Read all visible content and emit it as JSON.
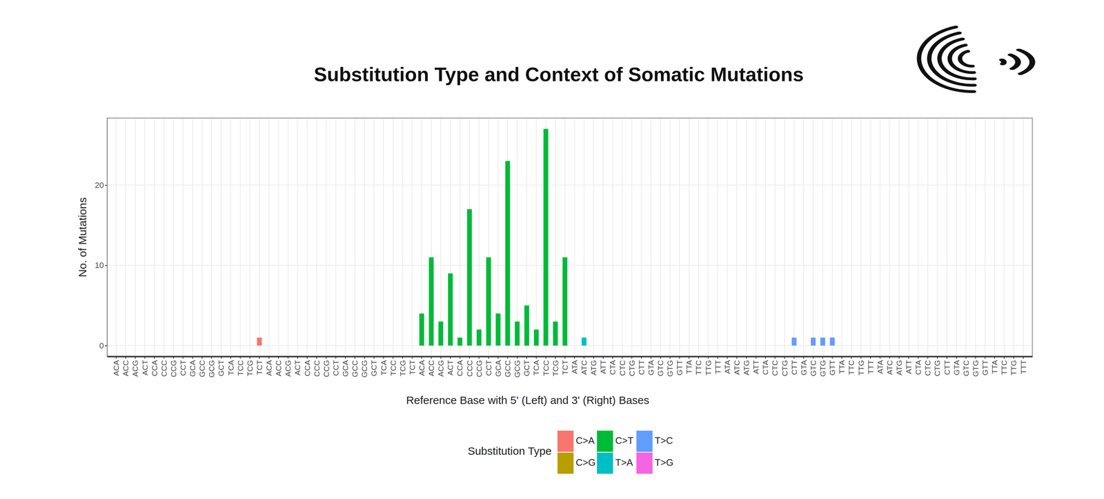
{
  "chart_data": {
    "type": "bar",
    "title": "Substitution Type and Context of Somatic Mutations",
    "x_label": "Reference Base with 5' (Left) and 3' (Right) Bases",
    "y_label": "No. of Mutations",
    "legend_title": "Substitution Type",
    "legend": "bottom",
    "grid": true,
    "categories": [
      "ACA",
      "ACC",
      "ACG",
      "ACT",
      "CCA",
      "CCC",
      "CCG",
      "CCT",
      "GCA",
      "GCC",
      "GCG",
      "GCT",
      "TCA",
      "TCC",
      "TCG",
      "TCT",
      "ACA",
      "ACC",
      "ACG",
      "ACT",
      "CCA",
      "CCC",
      "CCG",
      "CCT",
      "GCA",
      "GCC",
      "GCG",
      "GCT",
      "TCA",
      "TCC",
      "TCG",
      "TCT",
      "ACA",
      "ACC",
      "ACG",
      "ACT",
      "CCA",
      "CCC",
      "CCG",
      "CCT",
      "GCA",
      "GCC",
      "GCG",
      "GCT",
      "TCA",
      "TCC",
      "TCG",
      "TCT",
      "ATA",
      "ATC",
      "ATG",
      "ATT",
      "CTA",
      "CTC",
      "CTG",
      "CTT",
      "GTA",
      "GTC",
      "GTG",
      "GTT",
      "TTA",
      "TTC",
      "TTG",
      "TTT",
      "ATA",
      "ATC",
      "ATG",
      "ATT",
      "CTA",
      "CTC",
      "CTG",
      "CTT",
      "GTA",
      "GTC",
      "GTG",
      "GTT",
      "TTA",
      "TTC",
      "TTG",
      "TTT",
      "ATA",
      "ATC",
      "ATG",
      "ATT",
      "CTA",
      "CTC",
      "CTG",
      "CTT",
      "GTA",
      "GTC",
      "GTG",
      "GTT",
      "TTA",
      "TTC",
      "TTG",
      "TTT"
    ],
    "series": [
      {
        "name": "C>A",
        "color": "#F8766D",
        "values": [
          0,
          0,
          0,
          0,
          0,
          0,
          0,
          0,
          0,
          0,
          0,
          0,
          0,
          0,
          0,
          1,
          null,
          null,
          null,
          null,
          null,
          null,
          null,
          null,
          null,
          null,
          null,
          null,
          null,
          null,
          null,
          null,
          null,
          null,
          null,
          null,
          null,
          null,
          null,
          null,
          null,
          null,
          null,
          null,
          null,
          null,
          null,
          null,
          null,
          null,
          null,
          null,
          null,
          null,
          null,
          null,
          null,
          null,
          null,
          null,
          null,
          null,
          null,
          null,
          null,
          null,
          null,
          null,
          null,
          null,
          null,
          null,
          null,
          null,
          null,
          null,
          null,
          null,
          null,
          null,
          null,
          null,
          null,
          null,
          null,
          null,
          null,
          null,
          null,
          null,
          null,
          null,
          null,
          null,
          null,
          null
        ]
      },
      {
        "name": "C>G",
        "color": "#B79F00",
        "values": [
          null,
          null,
          null,
          null,
          null,
          null,
          null,
          null,
          null,
          null,
          null,
          null,
          null,
          null,
          null,
          null,
          0,
          0,
          0,
          0,
          0,
          0,
          0,
          0,
          0,
          0,
          0,
          0,
          0,
          0,
          0,
          0,
          null,
          null,
          null,
          null,
          null,
          null,
          null,
          null,
          null,
          null,
          null,
          null,
          null,
          null,
          null,
          null,
          null,
          null,
          null,
          null,
          null,
          null,
          null,
          null,
          null,
          null,
          null,
          null,
          null,
          null,
          null,
          null,
          null,
          null,
          null,
          null,
          null,
          null,
          null,
          null,
          null,
          null,
          null,
          null,
          null,
          null,
          null,
          null,
          null,
          null,
          null,
          null,
          null,
          null,
          null,
          null,
          null,
          null,
          null,
          null,
          null,
          null,
          null,
          null
        ]
      },
      {
        "name": "C>T",
        "color": "#00BA38",
        "values": [
          null,
          null,
          null,
          null,
          null,
          null,
          null,
          null,
          null,
          null,
          null,
          null,
          null,
          null,
          null,
          null,
          null,
          null,
          null,
          null,
          null,
          null,
          null,
          null,
          null,
          null,
          null,
          null,
          null,
          null,
          null,
          null,
          4,
          11,
          3,
          9,
          1,
          17,
          2,
          11,
          4,
          23,
          3,
          5,
          2,
          27,
          3,
          11,
          null,
          null,
          null,
          null,
          null,
          null,
          null,
          null,
          null,
          null,
          null,
          null,
          null,
          null,
          null,
          null,
          null,
          null,
          null,
          null,
          null,
          null,
          null,
          null,
          null,
          null,
          null,
          null,
          null,
          null,
          null,
          null,
          null,
          null,
          null,
          null,
          null,
          null,
          null,
          null,
          null,
          null,
          null,
          null,
          null,
          null,
          null,
          null
        ]
      },
      {
        "name": "T>A",
        "color": "#00BFC4",
        "values": [
          null,
          null,
          null,
          null,
          null,
          null,
          null,
          null,
          null,
          null,
          null,
          null,
          null,
          null,
          null,
          null,
          null,
          null,
          null,
          null,
          null,
          null,
          null,
          null,
          null,
          null,
          null,
          null,
          null,
          null,
          null,
          null,
          null,
          null,
          null,
          null,
          null,
          null,
          null,
          null,
          null,
          null,
          null,
          null,
          null,
          null,
          null,
          null,
          0,
          1,
          0,
          0,
          0,
          0,
          0,
          0,
          0,
          0,
          0,
          0,
          0,
          0,
          0,
          0,
          null,
          null,
          null,
          null,
          null,
          null,
          null,
          null,
          null,
          null,
          null,
          null,
          null,
          null,
          null,
          null,
          null,
          null,
          null,
          null,
          null,
          null,
          null,
          null,
          null,
          null,
          null,
          null,
          null,
          null,
          null,
          null
        ]
      },
      {
        "name": "T>C",
        "color": "#619CFF",
        "values": [
          null,
          null,
          null,
          null,
          null,
          null,
          null,
          null,
          null,
          null,
          null,
          null,
          null,
          null,
          null,
          null,
          null,
          null,
          null,
          null,
          null,
          null,
          null,
          null,
          null,
          null,
          null,
          null,
          null,
          null,
          null,
          null,
          null,
          null,
          null,
          null,
          null,
          null,
          null,
          null,
          null,
          null,
          null,
          null,
          null,
          null,
          null,
          null,
          null,
          null,
          null,
          null,
          null,
          null,
          null,
          null,
          null,
          null,
          null,
          null,
          null,
          null,
          null,
          null,
          0,
          0,
          0,
          0,
          0,
          0,
          0,
          1,
          0,
          1,
          1,
          1,
          0,
          0,
          0,
          0,
          null,
          null,
          null,
          null,
          null,
          null,
          null,
          null,
          null,
          null,
          null,
          null,
          null,
          null,
          null,
          null
        ]
      },
      {
        "name": "T>G",
        "color": "#F564E3",
        "values": [
          null,
          null,
          null,
          null,
          null,
          null,
          null,
          null,
          null,
          null,
          null,
          null,
          null,
          null,
          null,
          null,
          null,
          null,
          null,
          null,
          null,
          null,
          null,
          null,
          null,
          null,
          null,
          null,
          null,
          null,
          null,
          null,
          null,
          null,
          null,
          null,
          null,
          null,
          null,
          null,
          null,
          null,
          null,
          null,
          null,
          null,
          null,
          null,
          null,
          null,
          null,
          null,
          null,
          null,
          null,
          null,
          null,
          null,
          null,
          null,
          null,
          null,
          null,
          null,
          null,
          null,
          null,
          null,
          null,
          null,
          null,
          null,
          null,
          null,
          null,
          null,
          null,
          null,
          null,
          null,
          0,
          0,
          0,
          0,
          0,
          0,
          0,
          0,
          0,
          0,
          0,
          0,
          0,
          0,
          0,
          0
        ]
      }
    ],
    "ylim": [
      -1.35,
      28.35
    ],
    "yticks": [
      0,
      10,
      20
    ]
  }
}
